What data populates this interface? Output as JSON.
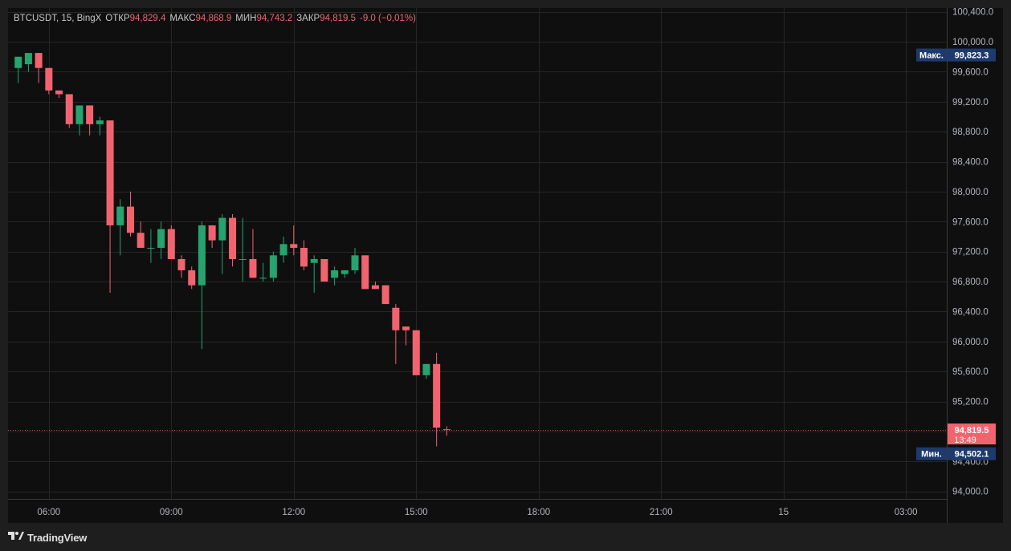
{
  "legend": {
    "symbol": "BTCUSDT",
    "interval": "15",
    "exchange": "BingX",
    "open_label": "ОТКР",
    "open_value": "94,829.4",
    "high_label": "МАКС",
    "high_value": "94,868.9",
    "low_label": "МИН",
    "low_value": "94,743.2",
    "close_label": "ЗАКР",
    "close_value": "94,819.5",
    "change": "-9.0 (−0,01%)"
  },
  "price_badges": {
    "max_label": "Макс.",
    "max_value": "99,823.3",
    "last_price": "94,819.5",
    "countdown": "13:49",
    "min_label": "Мин.",
    "min_value": "94,502.1"
  },
  "footer": {
    "brand": "TradingView"
  },
  "colors": {
    "up": "#26a36e",
    "down": "#f1646f",
    "background": "#0f0f0f",
    "grid": "#262626",
    "axis_text": "#b2b5be",
    "badge_blue": "#1d3a6e"
  },
  "chart_data": {
    "type": "candlestick",
    "symbol": "BTCUSDT",
    "interval_minutes": 15,
    "y_ticks": [
      "100,400.0",
      "100,000.0",
      "99,600.0",
      "99,200.0",
      "98,800.0",
      "98,400.0",
      "98,000.0",
      "97,600.0",
      "97,200.0",
      "96,800.0",
      "96,400.0",
      "96,000.0",
      "95,600.0",
      "95,200.0",
      "94,800.0",
      "94,400.0",
      "94,000.0"
    ],
    "y_tick_values": [
      100400,
      100000,
      99600,
      99200,
      98800,
      98400,
      98000,
      97600,
      97200,
      96800,
      96400,
      96000,
      95600,
      95200,
      94800,
      94400,
      94000
    ],
    "x_ticks": [
      "06:00",
      "09:00",
      "12:00",
      "15:00",
      "18:00",
      "21:00",
      "15",
      "03:00"
    ],
    "x_tick_hours": [
      6,
      9,
      12,
      15,
      18,
      21,
      24,
      27
    ],
    "ylim": [
      93900,
      100450
    ],
    "xlim_hours": [
      5.0,
      28.0
    ],
    "last_price": 94819.5,
    "candles": [
      {
        "t": 5.25,
        "o": 99650,
        "h": 99800,
        "l": 99450,
        "c": 99800
      },
      {
        "t": 5.5,
        "o": 99700,
        "h": 99850,
        "l": 99600,
        "c": 99850
      },
      {
        "t": 5.75,
        "o": 99850,
        "h": 99850,
        "l": 99450,
        "c": 99650
      },
      {
        "t": 6.0,
        "o": 99650,
        "h": 99650,
        "l": 99300,
        "c": 99350
      },
      {
        "t": 6.25,
        "o": 99350,
        "h": 99350,
        "l": 99250,
        "c": 99300
      },
      {
        "t": 6.5,
        "o": 99300,
        "h": 99300,
        "l": 98850,
        "c": 98900
      },
      {
        "t": 6.75,
        "o": 98900,
        "h": 99150,
        "l": 98750,
        "c": 99150
      },
      {
        "t": 7.0,
        "o": 99150,
        "h": 99150,
        "l": 98750,
        "c": 98900
      },
      {
        "t": 7.25,
        "o": 98900,
        "h": 99000,
        "l": 98750,
        "c": 98950
      },
      {
        "t": 7.5,
        "o": 98950,
        "h": 98950,
        "l": 96650,
        "c": 97550
      },
      {
        "t": 7.75,
        "o": 97550,
        "h": 97900,
        "l": 97150,
        "c": 97800
      },
      {
        "t": 8.0,
        "o": 97800,
        "h": 98000,
        "l": 97400,
        "c": 97450
      },
      {
        "t": 8.25,
        "o": 97450,
        "h": 97600,
        "l": 97250,
        "c": 97250
      },
      {
        "t": 8.5,
        "o": 97250,
        "h": 97500,
        "l": 97050,
        "c": 97250
      },
      {
        "t": 8.75,
        "o": 97250,
        "h": 97600,
        "l": 97100,
        "c": 97500
      },
      {
        "t": 9.0,
        "o": 97500,
        "h": 97550,
        "l": 97100,
        "c": 97100
      },
      {
        "t": 9.25,
        "o": 97100,
        "h": 97150,
        "l": 96850,
        "c": 96950
      },
      {
        "t": 9.5,
        "o": 96950,
        "h": 97000,
        "l": 96700,
        "c": 96750
      },
      {
        "t": 9.75,
        "o": 96750,
        "h": 97600,
        "l": 95900,
        "c": 97550
      },
      {
        "t": 10.0,
        "o": 97550,
        "h": 97550,
        "l": 97250,
        "c": 97350
      },
      {
        "t": 10.25,
        "o": 97350,
        "h": 97700,
        "l": 96900,
        "c": 97650
      },
      {
        "t": 10.5,
        "o": 97650,
        "h": 97700,
        "l": 97000,
        "c": 97100
      },
      {
        "t": 10.75,
        "o": 97100,
        "h": 97650,
        "l": 96800,
        "c": 97100
      },
      {
        "t": 11.0,
        "o": 97100,
        "h": 97500,
        "l": 96850,
        "c": 96850
      },
      {
        "t": 11.25,
        "o": 96850,
        "h": 97050,
        "l": 96800,
        "c": 96850
      },
      {
        "t": 11.5,
        "o": 96850,
        "h": 97200,
        "l": 96800,
        "c": 97150
      },
      {
        "t": 11.75,
        "o": 97150,
        "h": 97400,
        "l": 97050,
        "c": 97300
      },
      {
        "t": 12.0,
        "o": 97300,
        "h": 97550,
        "l": 97150,
        "c": 97250
      },
      {
        "t": 12.25,
        "o": 97250,
        "h": 97350,
        "l": 96950,
        "c": 97000
      },
      {
        "t": 12.5,
        "o": 97050,
        "h": 97150,
        "l": 96650,
        "c": 97100
      },
      {
        "t": 12.75,
        "o": 97100,
        "h": 97100,
        "l": 96800,
        "c": 96800
      },
      {
        "t": 13.0,
        "o": 96850,
        "h": 97000,
        "l": 96750,
        "c": 96950
      },
      {
        "t": 13.25,
        "o": 96900,
        "h": 96950,
        "l": 96850,
        "c": 96950
      },
      {
        "t": 13.5,
        "o": 96950,
        "h": 97250,
        "l": 96900,
        "c": 97150
      },
      {
        "t": 13.75,
        "o": 97150,
        "h": 97150,
        "l": 96700,
        "c": 96700
      },
      {
        "t": 14.0,
        "o": 96750,
        "h": 96800,
        "l": 96700,
        "c": 96700
      },
      {
        "t": 14.25,
        "o": 96750,
        "h": 96750,
        "l": 96500,
        "c": 96500
      },
      {
        "t": 14.5,
        "o": 96450,
        "h": 96500,
        "l": 95700,
        "c": 96150
      },
      {
        "t": 14.75,
        "o": 96200,
        "h": 96200,
        "l": 95950,
        "c": 96150
      },
      {
        "t": 15.0,
        "o": 96150,
        "h": 96150,
        "l": 95550,
        "c": 95550
      },
      {
        "t": 15.25,
        "o": 95550,
        "h": 95700,
        "l": 95500,
        "c": 95700
      },
      {
        "t": 15.5,
        "o": 95700,
        "h": 95850,
        "l": 94600,
        "c": 94850
      },
      {
        "t": 15.75,
        "o": 94829.4,
        "h": 94868.9,
        "l": 94743.2,
        "c": 94819.5
      }
    ]
  }
}
